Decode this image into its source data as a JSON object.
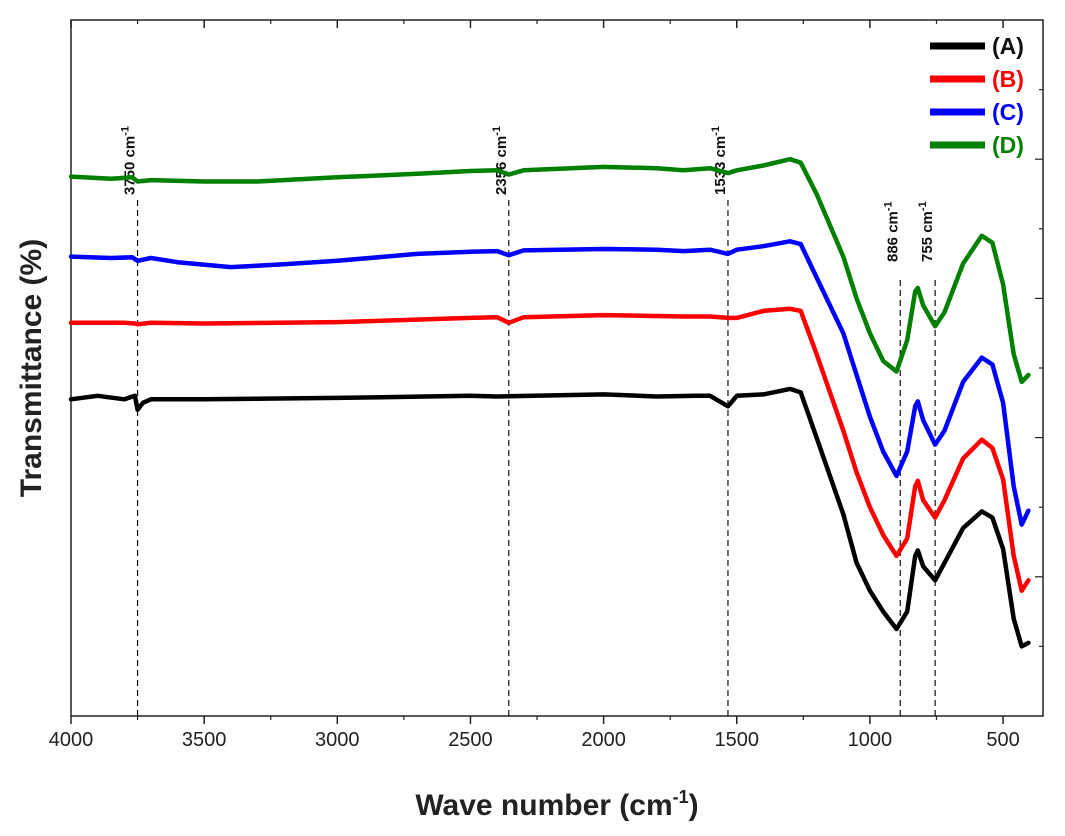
{
  "chart_data": {
    "type": "line",
    "xlabel": "Wave number",
    "xlabel_unit": "(cm",
    "xlabel_unit_sup": "-1",
    "xlabel_unit_close": ")",
    "ylabel": "Transmittance (%)",
    "xlim": [
      4000,
      350
    ],
    "x_reversed": true,
    "y_tick_labels_shown": false,
    "x_ticks": [
      4000,
      3500,
      3000,
      2500,
      2000,
      1500,
      1000,
      500
    ],
    "x_tick_labels": [
      "4000",
      "3500",
      "3000",
      "2500",
      "2000",
      "1500",
      "1000",
      "500"
    ],
    "legend_position": "top-right",
    "series": [
      {
        "name": "(A)",
        "color": "#000000",
        "points": [
          [
            4000,
            0.545
          ],
          [
            3900,
            0.54
          ],
          [
            3800,
            0.545
          ],
          [
            3760,
            0.54
          ],
          [
            3750,
            0.56
          ],
          [
            3730,
            0.55
          ],
          [
            3700,
            0.545
          ],
          [
            3600,
            0.545
          ],
          [
            3500,
            0.545
          ],
          [
            3000,
            0.543
          ],
          [
            2500,
            0.54
          ],
          [
            2400,
            0.541
          ],
          [
            2000,
            0.538
          ],
          [
            1800,
            0.541
          ],
          [
            1650,
            0.54
          ],
          [
            1600,
            0.54
          ],
          [
            1533,
            0.555
          ],
          [
            1500,
            0.54
          ],
          [
            1400,
            0.538
          ],
          [
            1300,
            0.53
          ],
          [
            1260,
            0.535
          ],
          [
            1200,
            0.6
          ],
          [
            1100,
            0.71
          ],
          [
            1050,
            0.78
          ],
          [
            1000,
            0.82
          ],
          [
            950,
            0.85
          ],
          [
            900,
            0.875
          ],
          [
            860,
            0.85
          ],
          [
            830,
            0.77
          ],
          [
            820,
            0.762
          ],
          [
            800,
            0.785
          ],
          [
            755,
            0.805
          ],
          [
            720,
            0.78
          ],
          [
            650,
            0.73
          ],
          [
            580,
            0.706
          ],
          [
            540,
            0.715
          ],
          [
            500,
            0.76
          ],
          [
            460,
            0.86
          ],
          [
            430,
            0.9
          ],
          [
            405,
            0.895
          ]
        ]
      },
      {
        "name": "(B)",
        "color": "#ff0000",
        "points": [
          [
            4000,
            0.435
          ],
          [
            3800,
            0.435
          ],
          [
            3760,
            0.436
          ],
          [
            3750,
            0.437
          ],
          [
            3700,
            0.435
          ],
          [
            3500,
            0.436
          ],
          [
            3000,
            0.434
          ],
          [
            2500,
            0.428
          ],
          [
            2400,
            0.427
          ],
          [
            2356,
            0.435
          ],
          [
            2300,
            0.427
          ],
          [
            2000,
            0.424
          ],
          [
            1700,
            0.426
          ],
          [
            1600,
            0.426
          ],
          [
            1533,
            0.428
          ],
          [
            1500,
            0.428
          ],
          [
            1400,
            0.418
          ],
          [
            1300,
            0.415
          ],
          [
            1260,
            0.418
          ],
          [
            1200,
            0.48
          ],
          [
            1100,
            0.59
          ],
          [
            1050,
            0.65
          ],
          [
            1000,
            0.7
          ],
          [
            950,
            0.74
          ],
          [
            900,
            0.77
          ],
          [
            860,
            0.745
          ],
          [
            830,
            0.67
          ],
          [
            820,
            0.662
          ],
          [
            800,
            0.69
          ],
          [
            755,
            0.715
          ],
          [
            720,
            0.69
          ],
          [
            650,
            0.63
          ],
          [
            580,
            0.603
          ],
          [
            540,
            0.615
          ],
          [
            500,
            0.66
          ],
          [
            460,
            0.77
          ],
          [
            430,
            0.82
          ],
          [
            405,
            0.805
          ]
        ]
      },
      {
        "name": "(C)",
        "color": "#0000ff",
        "points": [
          [
            4000,
            0.34
          ],
          [
            3850,
            0.342
          ],
          [
            3770,
            0.341
          ],
          [
            3750,
            0.346
          ],
          [
            3700,
            0.342
          ],
          [
            3600,
            0.348
          ],
          [
            3400,
            0.355
          ],
          [
            3200,
            0.351
          ],
          [
            3000,
            0.346
          ],
          [
            2700,
            0.336
          ],
          [
            2500,
            0.333
          ],
          [
            2400,
            0.332
          ],
          [
            2356,
            0.338
          ],
          [
            2300,
            0.331
          ],
          [
            2000,
            0.329
          ],
          [
            1800,
            0.33
          ],
          [
            1700,
            0.332
          ],
          [
            1600,
            0.33
          ],
          [
            1533,
            0.336
          ],
          [
            1500,
            0.33
          ],
          [
            1400,
            0.325
          ],
          [
            1300,
            0.318
          ],
          [
            1260,
            0.322
          ],
          [
            1200,
            0.37
          ],
          [
            1100,
            0.45
          ],
          [
            1050,
            0.51
          ],
          [
            1000,
            0.57
          ],
          [
            950,
            0.62
          ],
          [
            900,
            0.655
          ],
          [
            860,
            0.62
          ],
          [
            830,
            0.555
          ],
          [
            820,
            0.548
          ],
          [
            800,
            0.575
          ],
          [
            755,
            0.61
          ],
          [
            720,
            0.59
          ],
          [
            650,
            0.52
          ],
          [
            580,
            0.485
          ],
          [
            540,
            0.495
          ],
          [
            500,
            0.55
          ],
          [
            460,
            0.67
          ],
          [
            430,
            0.725
          ],
          [
            405,
            0.705
          ]
        ]
      },
      {
        "name": "(D)",
        "color": "#008000",
        "points": [
          [
            4000,
            0.225
          ],
          [
            3850,
            0.228
          ],
          [
            3770,
            0.226
          ],
          [
            3750,
            0.232
          ],
          [
            3700,
            0.23
          ],
          [
            3500,
            0.232
          ],
          [
            3300,
            0.232
          ],
          [
            3000,
            0.226
          ],
          [
            2700,
            0.221
          ],
          [
            2500,
            0.217
          ],
          [
            2400,
            0.216
          ],
          [
            2356,
            0.222
          ],
          [
            2300,
            0.216
          ],
          [
            2000,
            0.211
          ],
          [
            1800,
            0.213
          ],
          [
            1700,
            0.216
          ],
          [
            1600,
            0.213
          ],
          [
            1533,
            0.22
          ],
          [
            1500,
            0.216
          ],
          [
            1400,
            0.209
          ],
          [
            1300,
            0.2
          ],
          [
            1260,
            0.205
          ],
          [
            1200,
            0.25
          ],
          [
            1100,
            0.34
          ],
          [
            1050,
            0.4
          ],
          [
            1000,
            0.45
          ],
          [
            950,
            0.49
          ],
          [
            900,
            0.505
          ],
          [
            860,
            0.46
          ],
          [
            830,
            0.39
          ],
          [
            820,
            0.385
          ],
          [
            800,
            0.41
          ],
          [
            755,
            0.44
          ],
          [
            720,
            0.42
          ],
          [
            650,
            0.35
          ],
          [
            580,
            0.31
          ],
          [
            540,
            0.32
          ],
          [
            500,
            0.38
          ],
          [
            460,
            0.48
          ],
          [
            430,
            0.52
          ],
          [
            405,
            0.51
          ]
        ]
      }
    ],
    "annotations": [
      {
        "x": 3750,
        "label": "3750 cm",
        "sup": "-1"
      },
      {
        "x": 2356,
        "label": "2356 cm",
        "sup": "-1"
      },
      {
        "x": 1533,
        "label": "1533 cm",
        "sup": "-1"
      },
      {
        "x": 886,
        "label": "886 cm",
        "sup": "-1"
      },
      {
        "x": 755,
        "label": "755 cm",
        "sup": "-1"
      }
    ]
  }
}
